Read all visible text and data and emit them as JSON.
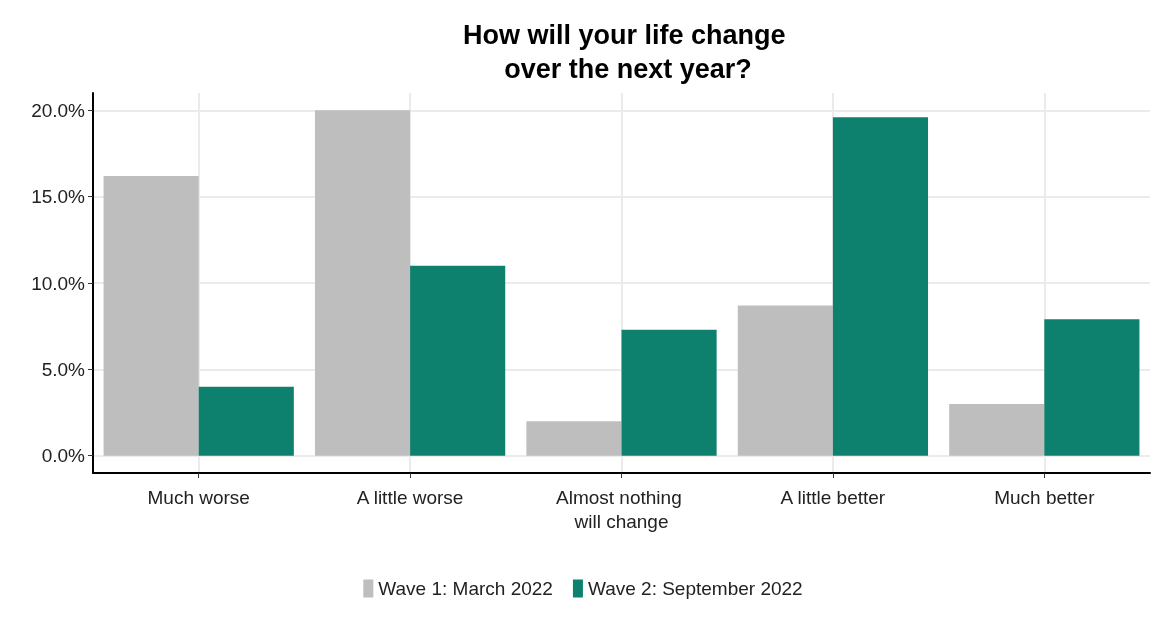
{
  "chart_data": {
    "type": "bar",
    "title": "How will your life change over the next year?",
    "categories": [
      "Much worse",
      "A little worse",
      "Almost nothing will change",
      "A little better",
      "Much better"
    ],
    "series": [
      {
        "name": "Wave 1: March 2022",
        "color": "#bebebe",
        "values": [
          16.2,
          20.0,
          2.0,
          8.7,
          3.0
        ]
      },
      {
        "name": "Wave 2: September 2022",
        "color": "#0e806e",
        "values": [
          4.0,
          11.0,
          7.3,
          19.6,
          7.9
        ]
      }
    ],
    "ylim": [
      -1,
      21
    ],
    "yticks": [
      {
        "value": 0,
        "label": "0.0%"
      },
      {
        "value": 5,
        "label": "5.0%"
      },
      {
        "value": 10,
        "label": "10.0%"
      },
      {
        "value": 15,
        "label": "15.0%"
      },
      {
        "value": 20,
        "label": "20.0%"
      }
    ],
    "grid": true,
    "legend": "bottom"
  }
}
